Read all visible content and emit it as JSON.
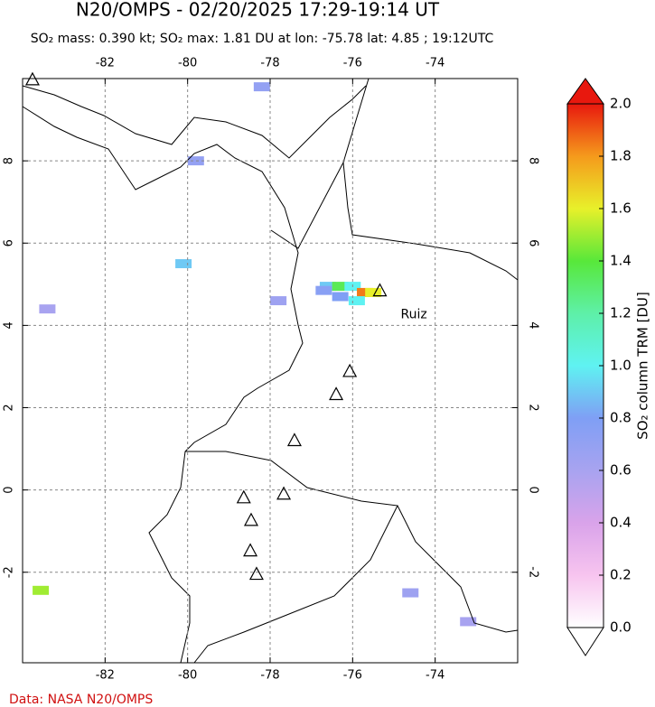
{
  "title": "N20/OMPS - 02/20/2025 17:29-19:14 UT",
  "subtitle": "SO₂ mass: 0.390 kt; SO₂ max: 1.81 DU at lon: -75.78 lat: 4.85 ; 19:12UTC",
  "map": {
    "xlim": [
      -84,
      -72
    ],
    "ylim": [
      -4.2,
      10
    ],
    "xticks": [
      -82,
      -80,
      -78,
      -76,
      -74
    ],
    "yticks": [
      8,
      6,
      4,
      2,
      0,
      -2
    ],
    "grid": true,
    "volcanoes": [
      {
        "lon": -83.76,
        "lat": 9.98
      },
      {
        "lon": -75.34,
        "lat": 4.85,
        "name": "Ruiz"
      },
      {
        "lon": -76.07,
        "lat": 2.89
      },
      {
        "lon": -76.4,
        "lat": 2.33
      },
      {
        "lon": -77.41,
        "lat": 1.21
      },
      {
        "lon": -78.64,
        "lat": -0.18
      },
      {
        "lon": -77.67,
        "lat": -0.09
      },
      {
        "lon": -78.46,
        "lat": -0.73
      },
      {
        "lon": -78.48,
        "lat": -1.47
      },
      {
        "lon": -78.33,
        "lat": -2.04
      }
    ],
    "pixels": [
      {
        "lon": -76.6,
        "lat": 4.95,
        "value": 0.9
      },
      {
        "lon": -76.3,
        "lat": 4.95,
        "value": 1.35
      },
      {
        "lon": -76.0,
        "lat": 4.95,
        "value": 1.0
      },
      {
        "lon": -75.7,
        "lat": 4.8,
        "value": 1.85
      },
      {
        "lon": -75.5,
        "lat": 4.8,
        "value": 1.6
      },
      {
        "lon": -76.3,
        "lat": 4.7,
        "value": 0.8
      },
      {
        "lon": -75.9,
        "lat": 4.6,
        "value": 1.0
      },
      {
        "lon": -76.7,
        "lat": 4.85,
        "value": 0.75
      },
      {
        "lon": -83.56,
        "lat": -2.44,
        "value": 1.5
      },
      {
        "lon": -80.1,
        "lat": 5.5,
        "value": 0.9
      },
      {
        "lon": -78.2,
        "lat": 9.8,
        "value": 0.7
      },
      {
        "lon": -79.8,
        "lat": 8.0,
        "value": 0.7
      },
      {
        "lon": -77.8,
        "lat": 4.6,
        "value": 0.65
      },
      {
        "lon": -74.6,
        "lat": -2.5,
        "value": 0.65
      },
      {
        "lon": -73.2,
        "lat": -3.2,
        "value": 0.6
      },
      {
        "lon": -83.4,
        "lat": 4.4,
        "value": 0.6
      }
    ]
  },
  "colorbar": {
    "label": "SO₂ column TRM [DU]",
    "lim": [
      0,
      2
    ],
    "colors": [
      "#ffffff",
      "#f7c4ef",
      "#d9a3ea",
      "#a8a3f0",
      "#7f9ff5",
      "#5ff2f2",
      "#5ef0a8",
      "#58e83a",
      "#e8f02a",
      "#f59a1c",
      "#e8180e"
    ],
    "ticks": [
      {
        "value": 0,
        "label": "0.0"
      },
      {
        "value": 0.2,
        "label": "0.2"
      },
      {
        "value": 0.4,
        "label": "0.4"
      },
      {
        "value": 0.6,
        "label": "0.6"
      },
      {
        "value": 0.8,
        "label": "0.8"
      },
      {
        "value": 1,
        "label": "1.0"
      },
      {
        "value": 1.2,
        "label": "1.2"
      },
      {
        "value": 1.4,
        "label": "1.4"
      },
      {
        "value": 1.6,
        "label": "1.6"
      },
      {
        "value": 1.8,
        "label": "1.8"
      },
      {
        "value": 2,
        "label": "2.0"
      }
    ]
  },
  "source": "Data: NASA N20/OMPS"
}
